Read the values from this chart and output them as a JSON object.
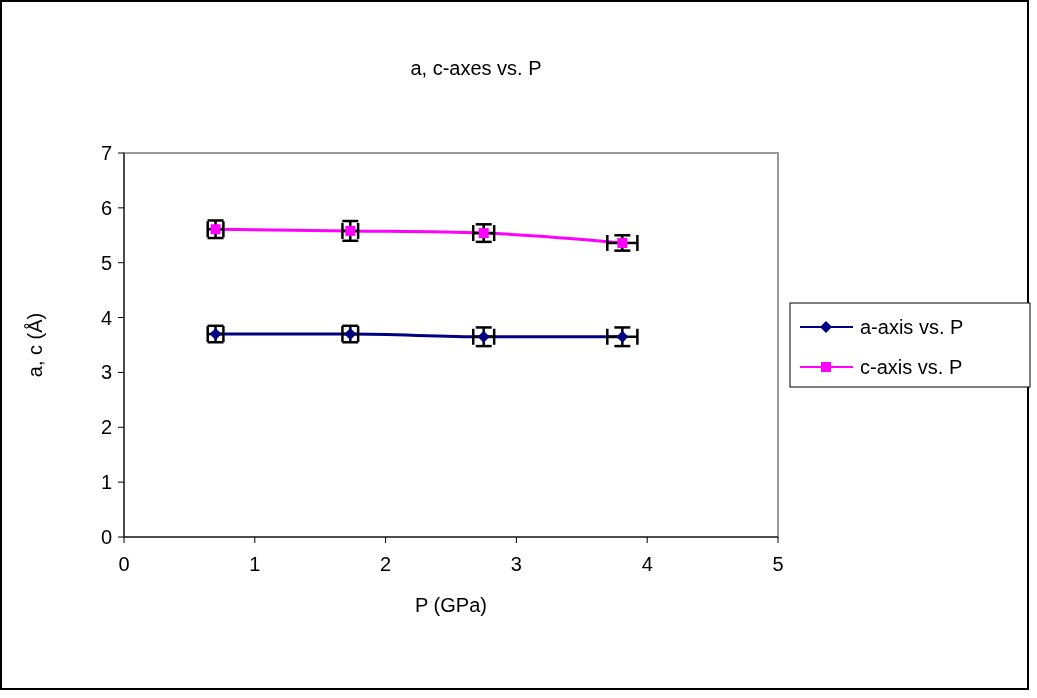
{
  "chart_data": {
    "type": "line",
    "title": "a, c-axes vs. P",
    "xlabel": "P (GPa)",
    "ylabel": "a, c (Å)",
    "x": [
      0.7,
      1.73,
      2.75,
      3.81
    ],
    "series": [
      {
        "name": "a-axis vs. P",
        "color": "#000080",
        "marker": "diamond",
        "values": [
          3.7,
          3.7,
          3.65,
          3.65
        ],
        "errors": [
          0.15,
          0.15,
          0.17,
          0.17
        ],
        "xerrors": [
          0.06,
          0.06,
          0.08,
          0.115
        ]
      },
      {
        "name": "c-axis vs. P",
        "color": "#ff00ff",
        "marker": "square",
        "values": [
          5.61,
          5.58,
          5.54,
          5.36
        ],
        "errors": [
          0.16,
          0.18,
          0.16,
          0.14
        ],
        "xerrors": [
          0.06,
          0.06,
          0.08,
          0.115
        ]
      }
    ],
    "xlim": [
      0,
      5
    ],
    "xticks": [
      0,
      1,
      2,
      3,
      4,
      5
    ],
    "ylim": [
      0,
      7
    ],
    "yticks": [
      0,
      1,
      2,
      3,
      4,
      5,
      6,
      7
    ],
    "grid": false,
    "legend": "right"
  }
}
